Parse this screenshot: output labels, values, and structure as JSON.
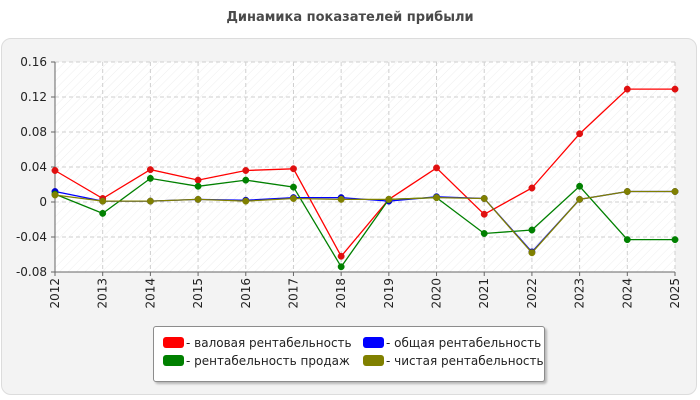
{
  "chart_data": {
    "type": "line",
    "title": "Динамика показателей прибыли",
    "x": [
      "2012",
      "2013",
      "2014",
      "2015",
      "2016",
      "2017",
      "2018",
      "2019",
      "2020",
      "2021",
      "2022",
      "2023",
      "2024",
      "2025"
    ],
    "ylim": [
      -0.08,
      0.16
    ],
    "yticks": [
      -0.08,
      -0.04,
      0,
      0.04,
      0.08,
      0.12,
      0.16
    ],
    "ytick_labels": [
      "-0.08",
      "-0.04",
      "0",
      "0.04",
      "0.08",
      "0.12",
      "0.16"
    ],
    "grid": true,
    "legend_position": "bottom",
    "series": [
      {
        "name": "- валовая рентабельность",
        "color": "#ff0000",
        "dot": "#e01010",
        "values": [
          0.036,
          0.004,
          0.037,
          0.025,
          0.036,
          0.038,
          -0.062,
          0.003,
          0.039,
          -0.014,
          0.016,
          0.078,
          0.129,
          0.129
        ]
      },
      {
        "name": "- общая рентабельность",
        "color": "#0000ff",
        "dot": "#0000cc",
        "values": [
          0.012,
          0.001,
          0.001,
          0.003,
          0.002,
          0.005,
          0.005,
          0.001,
          0.006,
          0.004,
          -0.057,
          0.003,
          0.012,
          0.012
        ]
      },
      {
        "name": "- рентабельность продаж",
        "color": "#008000",
        "dot": "#008000",
        "values": [
          0.009,
          -0.013,
          0.027,
          0.018,
          0.025,
          0.017,
          -0.074,
          0.003,
          0.005,
          -0.036,
          -0.032,
          0.018,
          -0.043,
          -0.043
        ]
      },
      {
        "name": "- чистая рентабельность",
        "color": "#808000",
        "dot": "#808000",
        "values": [
          0.008,
          0.001,
          0.001,
          0.003,
          0.001,
          0.004,
          0.003,
          0.003,
          0.005,
          0.004,
          -0.058,
          0.003,
          0.012,
          0.012
        ]
      }
    ]
  }
}
